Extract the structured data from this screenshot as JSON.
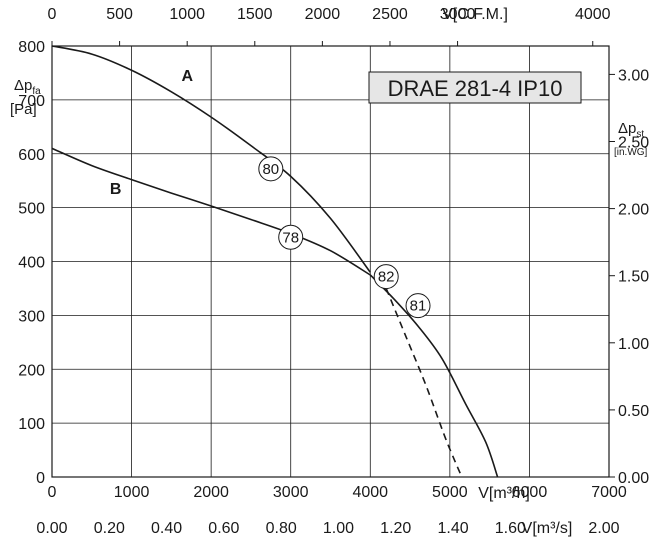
{
  "chart_data": {
    "type": "line",
    "title": "DRAE 281-4 IP10",
    "bottom_axis": {
      "label": "V[m³/h]",
      "ticks": [
        0,
        1000,
        2000,
        3000,
        4000,
        5000,
        6000,
        7000
      ],
      "range": [
        0,
        7000
      ]
    },
    "bottom_axis_secondary": {
      "label": "V[m³/s]",
      "ticks": [
        "0.00",
        "0.20",
        "0.40",
        "0.60",
        "0.80",
        "1.00",
        "1.20",
        "1.40",
        "1.60",
        "2.00"
      ]
    },
    "top_axis": {
      "label": "V[C.F.M.]",
      "ticks": [
        0,
        500,
        1000,
        1500,
        2000,
        2500,
        3000,
        4000
      ]
    },
    "left_axis": {
      "label_main": "Δp",
      "label_sub": "fa",
      "unit": "[Pa]",
      "ticks": [
        0,
        100,
        200,
        300,
        400,
        500,
        600,
        700,
        800
      ],
      "range": [
        0,
        800
      ]
    },
    "right_axis": {
      "label_main": "Δp",
      "label_sub": "st",
      "unit": "[in.WG]",
      "ticks": [
        "0.00",
        "0.50",
        "1.00",
        "1.50",
        "2.00",
        "2.50",
        "3.00"
      ]
    },
    "series": [
      {
        "name": "A",
        "style": "solid",
        "x": [
          0,
          500,
          1000,
          1500,
          2000,
          2500,
          3000,
          3500,
          4000
        ],
        "y": [
          800,
          785,
          755,
          715,
          668,
          615,
          558,
          480,
          380
        ]
      },
      {
        "name": "B",
        "style": "solid",
        "x": [
          0,
          500,
          1000,
          1500,
          2000,
          2500,
          3000,
          3500,
          4000
        ],
        "y": [
          610,
          578,
          552,
          527,
          503,
          478,
          452,
          420,
          375
        ]
      },
      {
        "name": "",
        "style": "solid",
        "x": [
          4000,
          4300,
          4600,
          4900,
          5200,
          5450,
          5600
        ],
        "y": [
          375,
          330,
          280,
          220,
          135,
          65,
          0
        ]
      },
      {
        "name": "",
        "style": "dashed",
        "x": [
          4200,
          4450,
          4700,
          4950,
          5150
        ],
        "y": [
          350,
          260,
          170,
          70,
          0
        ]
      }
    ],
    "annotations": [
      {
        "text": "80",
        "x": 2750,
        "y": 572
      },
      {
        "text": "78",
        "x": 3000,
        "y": 445
      },
      {
        "text": "82",
        "x": 4200,
        "y": 372
      },
      {
        "text": "81",
        "x": 4600,
        "y": 318
      }
    ],
    "curve_labels": [
      {
        "text": "A",
        "x": 1700,
        "y": 735
      },
      {
        "text": "B",
        "x": 800,
        "y": 525
      }
    ],
    "grid": true
  }
}
